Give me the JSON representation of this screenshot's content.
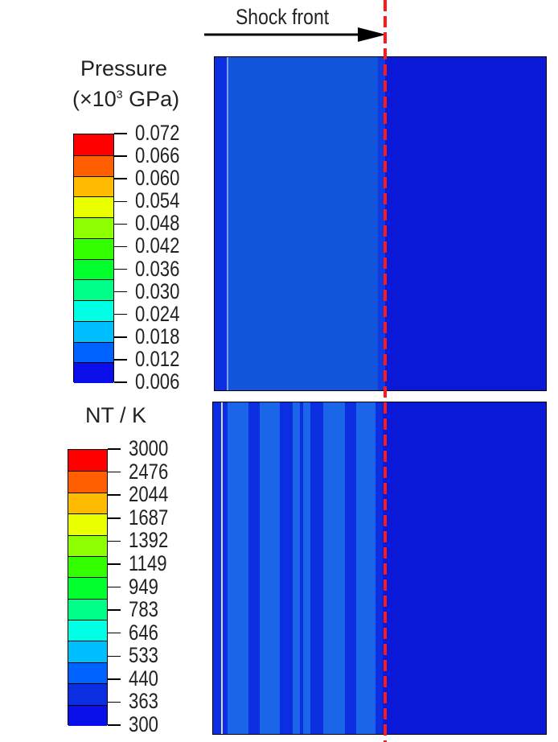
{
  "annotation": {
    "shock_front": "Shock front"
  },
  "pressure_legend": {
    "title_line1": "Pressure",
    "title_prefix": "(×10",
    "title_exponent": "3",
    "title_suffix": " GPa)",
    "ticks": [
      "0.072",
      "0.066",
      "0.060",
      "0.054",
      "0.048",
      "0.042",
      "0.036",
      "0.030",
      "0.024",
      "0.018",
      "0.012",
      "0.006"
    ]
  },
  "temperature_legend": {
    "title": "NT / K",
    "ticks": [
      "3000",
      "2476",
      "2044",
      "1687",
      "1392",
      "1149",
      "949",
      "783",
      "646",
      "533",
      "440",
      "363",
      "300"
    ]
  },
  "colors": {
    "scale": [
      "#ff0000",
      "#ff5f00",
      "#ffbb00",
      "#eaff00",
      "#8eff00",
      "#34ff00",
      "#00ff2c",
      "#00ff89",
      "#00ffe5",
      "#00bfff",
      "#0062ff",
      "#0a0ee8"
    ],
    "shocked_region": "#1155dd",
    "unshocked_region": "#0a18d8",
    "temperature_band_light": "#1b66e8",
    "temperature_band_dark": "#0a2ee0",
    "shock_line": "#ff1a1a"
  }
}
